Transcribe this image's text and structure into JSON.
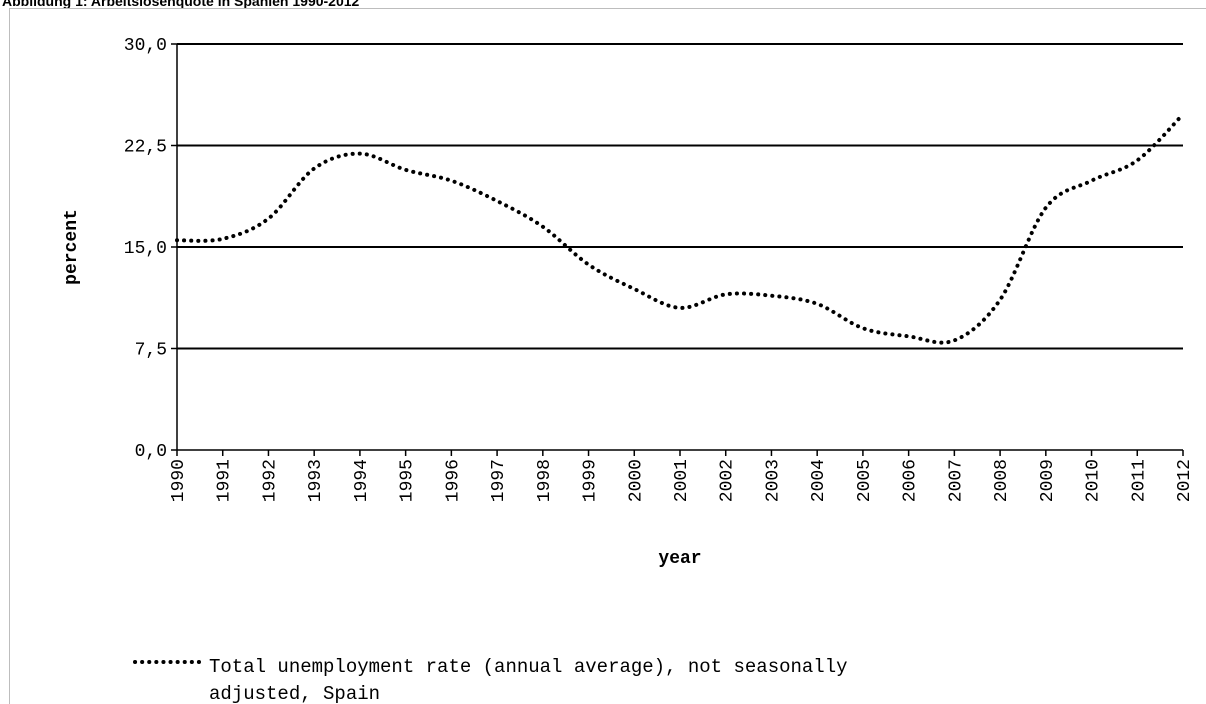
{
  "chart_data": {
    "type": "line",
    "title": "Abbildung 1: Arbeitslosenquote in Spanien 1990-2012",
    "xlabel": "year",
    "ylabel": "percent",
    "ylim": [
      0,
      30
    ],
    "y_ticks": [
      "0,0",
      "7,5",
      "15,0",
      "22,5",
      "30,0"
    ],
    "y_tick_values": [
      0,
      7.5,
      15,
      22.5,
      30
    ],
    "categories": [
      "1990",
      "1991",
      "1992",
      "1993",
      "1994",
      "1995",
      "1996",
      "1997",
      "1998",
      "1999",
      "2000",
      "2001",
      "2002",
      "2003",
      "2004",
      "2005",
      "2006",
      "2007",
      "2008",
      "2009",
      "2010",
      "2011",
      "2012"
    ],
    "grid": "horizontal",
    "legend_position": "bottom",
    "series": [
      {
        "name": "Total unemployment rate (annual average), not seasonally adjusted, Spain",
        "style": "dotted",
        "color": "#000000",
        "values": [
          15.5,
          15.6,
          17.1,
          20.8,
          21.9,
          20.7,
          19.9,
          18.4,
          16.5,
          13.7,
          11.9,
          10.5,
          11.5,
          11.4,
          10.8,
          9.0,
          8.4,
          8.1,
          11.1,
          17.9,
          19.9,
          21.4,
          24.8
        ]
      }
    ],
    "legend_lines": [
      "Total unemployment rate (annual average), not seasonally",
      "adjusted, Spain"
    ]
  }
}
